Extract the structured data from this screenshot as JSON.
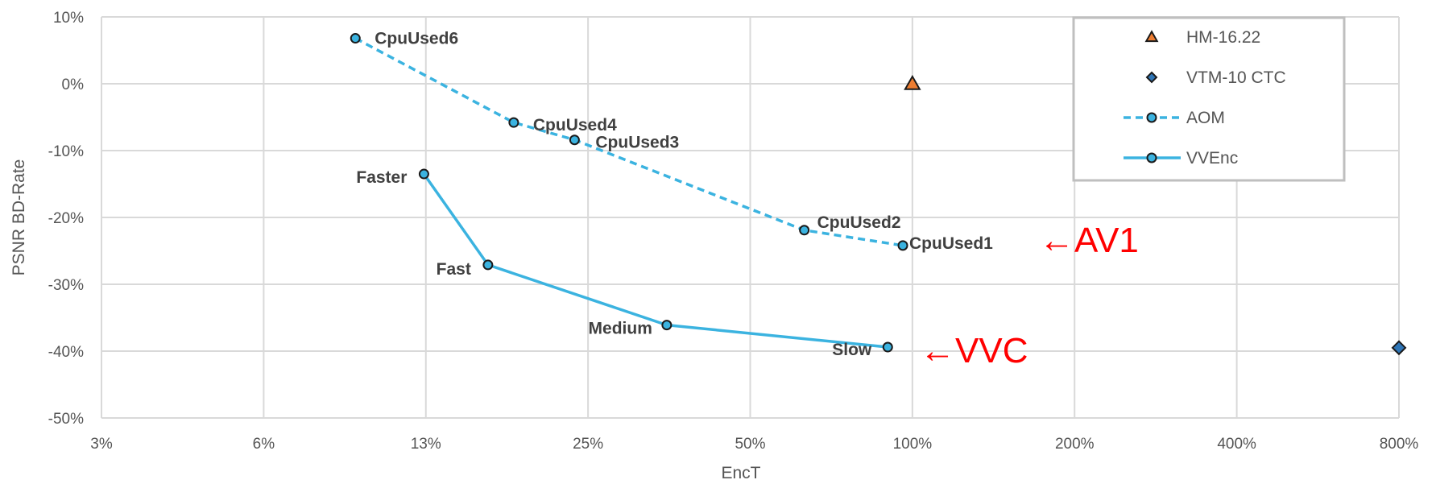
{
  "chart_data": {
    "type": "scatter",
    "title": "",
    "xlabel": "EncT",
    "ylabel": "PSNR BD-Rate",
    "x_scale": "log2",
    "xlim": [
      0.03125,
      8
    ],
    "ylim": [
      -50,
      10
    ],
    "x_ticks": [
      {
        "value": 0.03125,
        "label": "3%"
      },
      {
        "value": 0.0625,
        "label": "6%"
      },
      {
        "value": 0.125,
        "label": "13%"
      },
      {
        "value": 0.25,
        "label": "25%"
      },
      {
        "value": 0.5,
        "label": "50%"
      },
      {
        "value": 1,
        "label": "100%"
      },
      {
        "value": 2,
        "label": "200%"
      },
      {
        "value": 4,
        "label": "400%"
      },
      {
        "value": 8,
        "label": "800%"
      }
    ],
    "y_ticks": [
      {
        "value": 10,
        "label": "10%"
      },
      {
        "value": 0,
        "label": "0%"
      },
      {
        "value": -10,
        "label": "-10%"
      },
      {
        "value": -20,
        "label": "-20%"
      },
      {
        "value": -30,
        "label": "-30%"
      },
      {
        "value": -40,
        "label": "-40%"
      },
      {
        "value": -50,
        "label": "-50%"
      }
    ],
    "grid": true,
    "legend_position": "top-right",
    "series": [
      {
        "name": "HM-16.22",
        "marker": "triangle",
        "color": "#ED7D31",
        "line": "none",
        "points": [
          {
            "x": 1.0,
            "y": 0.0
          }
        ]
      },
      {
        "name": "VTM-10 CTC",
        "marker": "diamond",
        "color": "#2E75B6",
        "line": "none",
        "points": [
          {
            "x": 8.0,
            "y": -39.5
          }
        ]
      },
      {
        "name": "AOM",
        "marker": "circle",
        "color": "#3BB3E0",
        "line": "dashed",
        "points": [
          {
            "x": 0.0925,
            "y": 6.8,
            "label": "CpuUsed6"
          },
          {
            "x": 0.182,
            "y": -5.8,
            "label": "CpuUsed4"
          },
          {
            "x": 0.236,
            "y": -8.4,
            "label": "CpuUsed3"
          },
          {
            "x": 0.63,
            "y": -21.9,
            "label": "CpuUsed2"
          },
          {
            "x": 0.96,
            "y": -24.2,
            "label": "CpuUsed1"
          }
        ]
      },
      {
        "name": "VVEnc",
        "marker": "circle",
        "color": "#3BB3E0",
        "line": "solid",
        "points": [
          {
            "x": 0.124,
            "y": -13.5,
            "label": "Faster"
          },
          {
            "x": 0.163,
            "y": -27.1,
            "label": "Fast"
          },
          {
            "x": 0.35,
            "y": -36.1,
            "label": "Medium"
          },
          {
            "x": 0.9,
            "y": -39.4,
            "label": "Slow"
          }
        ]
      }
    ],
    "annotations": [
      {
        "text": "←AV1",
        "color": "#ff0000"
      },
      {
        "text": "←VVC",
        "color": "#ff0000"
      }
    ]
  }
}
